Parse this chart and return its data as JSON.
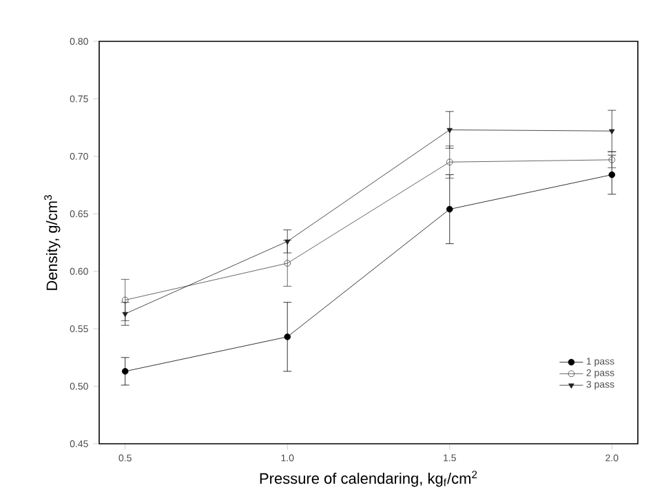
{
  "chart_data": {
    "type": "line",
    "xlabel": "Pressure of calendaring, kg$_{f}$/cm$^{2}$",
    "ylabel": "Density, g/cm$^{3}$",
    "x": [
      0.5,
      1.0,
      1.5,
      2.0
    ],
    "xlim": [
      0.42,
      2.08
    ],
    "xticks": [
      {
        "value": 0.5,
        "label": "0.5"
      },
      {
        "value": 1.0,
        "label": "1.0"
      },
      {
        "value": 1.5,
        "label": "1.5"
      },
      {
        "value": 2.0,
        "label": "2.0"
      }
    ],
    "ylim": [
      0.45,
      0.8
    ],
    "yticks": [
      {
        "value": 0.45,
        "label": "0.45"
      },
      {
        "value": 0.5,
        "label": "0.50"
      },
      {
        "value": 0.55,
        "label": "0.55"
      },
      {
        "value": 0.6,
        "label": "0.60"
      },
      {
        "value": 0.65,
        "label": "0.65"
      },
      {
        "value": 0.7,
        "label": "0.70"
      },
      {
        "value": 0.75,
        "label": "0.75"
      },
      {
        "value": 0.8,
        "label": "0.80"
      }
    ],
    "legend": "bottom right",
    "grid": false,
    "line_style": "solid",
    "series": [
      {
        "name": "1 pass",
        "color": "#000000",
        "marker": "circle",
        "values": [
          0.513,
          0.543,
          0.654,
          0.684
        ],
        "errors": [
          0.012,
          0.03,
          0.03,
          0.017
        ]
      },
      {
        "name": "2 pass",
        "color": "#404040",
        "marker": "circle_open",
        "values": [
          0.575,
          0.607,
          0.695,
          0.697
        ],
        "errors": [
          0.018,
          0.02,
          0.014,
          0.007
        ]
      },
      {
        "name": "3 pass",
        "color": "#202020",
        "marker": "triangle_down",
        "values": [
          0.563,
          0.626,
          0.723,
          0.722
        ],
        "errors": [
          0.01,
          0.01,
          0.016,
          0.018
        ]
      }
    ]
  }
}
